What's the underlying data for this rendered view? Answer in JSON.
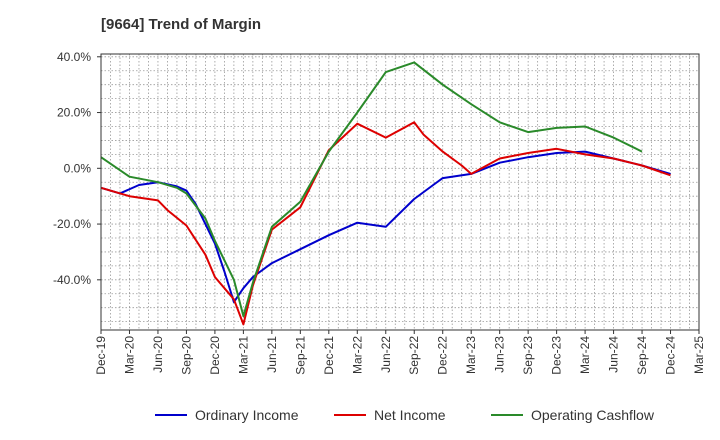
{
  "chart_data": {
    "type": "line",
    "title": "[9664]  Trend of Margin",
    "xlabel": "",
    "ylabel": "",
    "ylim": [
      -58,
      41
    ],
    "grid": true,
    "legend_position": "bottom",
    "y_ticks": [
      40,
      20,
      0,
      -20,
      -40
    ],
    "y_tick_labels": [
      "40.0%",
      "20.0%",
      "0.0%",
      "-20.0%",
      "-40.0%"
    ],
    "x_tick_labels": [
      "Dec-19",
      "Mar-20",
      "Jun-20",
      "Sep-20",
      "Dec-20",
      "Mar-21",
      "Jun-21",
      "Sep-21",
      "Dec-21",
      "Mar-22",
      "Jun-22",
      "Sep-22",
      "Dec-22",
      "Mar-23",
      "Jun-23",
      "Sep-23",
      "Dec-23",
      "Mar-24",
      "Jun-24",
      "Sep-24",
      "Dec-24",
      "Mar-25"
    ],
    "series": [
      {
        "name": "Ordinary Income",
        "color": "#0000cc",
        "points": [
          [
            "Dec-19",
            -7
          ],
          [
            "Feb-20",
            -9
          ],
          [
            "Apr-20",
            -6
          ],
          [
            "Jun-20",
            -5
          ],
          [
            "Aug-20",
            -6.5
          ],
          [
            "Sep-20",
            -8
          ],
          [
            "Oct-20",
            -13
          ],
          [
            "Nov-20",
            -20
          ],
          [
            "Dec-20",
            -27
          ],
          [
            "Jan-21",
            -37
          ],
          [
            "Feb-21",
            -48
          ],
          [
            "Mar-21",
            -43
          ],
          [
            "Apr-21",
            -39
          ],
          [
            "Jun-21",
            -34
          ],
          [
            "Sep-21",
            -29
          ],
          [
            "Dec-21",
            -24
          ],
          [
            "Mar-22",
            -19.5
          ],
          [
            "Jun-22",
            -21
          ],
          [
            "Sep-22",
            -11
          ],
          [
            "Nov-22",
            -6
          ],
          [
            "Dec-22",
            -3.5
          ],
          [
            "Mar-23",
            -2
          ],
          [
            "Jun-23",
            2
          ],
          [
            "Sep-23",
            4
          ],
          [
            "Dec-23",
            5.5
          ],
          [
            "Mar-24",
            6
          ],
          [
            "Jun-24",
            3.5
          ],
          [
            "Sep-24",
            1
          ],
          [
            "Dec-24",
            -2
          ]
        ]
      },
      {
        "name": "Net Income",
        "color": "#dd0000",
        "points": [
          [
            "Dec-19",
            -7
          ],
          [
            "Mar-20",
            -10
          ],
          [
            "Jun-20",
            -11.5
          ],
          [
            "Jul-20",
            -15
          ],
          [
            "Sep-20",
            -20.5
          ],
          [
            "Nov-20",
            -31
          ],
          [
            "Dec-20",
            -39
          ],
          [
            "Feb-21",
            -47
          ],
          [
            "Mar-21",
            -56
          ],
          [
            "Apr-21",
            -42
          ],
          [
            "Jun-21",
            -22
          ],
          [
            "Sep-21",
            -14
          ],
          [
            "Dec-21",
            6.5
          ],
          [
            "Mar-22",
            16
          ],
          [
            "Jun-22",
            11
          ],
          [
            "Sep-22",
            16.5
          ],
          [
            "Oct-22",
            12
          ],
          [
            "Dec-22",
            6
          ],
          [
            "Feb-23",
            1
          ],
          [
            "Mar-23",
            -2
          ],
          [
            "Jun-23",
            3.5
          ],
          [
            "Sep-23",
            5.5
          ],
          [
            "Dec-23",
            7
          ],
          [
            "Mar-24",
            5
          ],
          [
            "Jun-24",
            3.5
          ],
          [
            "Sep-24",
            1
          ],
          [
            "Dec-24",
            -2.5
          ]
        ]
      },
      {
        "name": "Operating Cashflow",
        "color": "#2a8a2a",
        "points": [
          [
            "Dec-19",
            4
          ],
          [
            "Mar-20",
            -3
          ],
          [
            "Jun-20",
            -5
          ],
          [
            "Aug-20",
            -7
          ],
          [
            "Sep-20",
            -9
          ],
          [
            "Nov-20",
            -18
          ],
          [
            "Dec-20",
            -26
          ],
          [
            "Feb-21",
            -40
          ],
          [
            "Mar-21",
            -53
          ],
          [
            "Apr-21",
            -41
          ],
          [
            "Jun-21",
            -21
          ],
          [
            "Sep-21",
            -12
          ],
          [
            "Dec-21",
            6
          ],
          [
            "Mar-22",
            20
          ],
          [
            "Jun-22",
            34.5
          ],
          [
            "Sep-22",
            38
          ],
          [
            "Dec-22",
            30
          ],
          [
            "Mar-23",
            23
          ],
          [
            "Jun-23",
            16.5
          ],
          [
            "Sep-23",
            13
          ],
          [
            "Dec-23",
            14.5
          ],
          [
            "Mar-24",
            15
          ],
          [
            "Jun-24",
            11
          ],
          [
            "Sep-24",
            6
          ]
        ]
      }
    ]
  }
}
